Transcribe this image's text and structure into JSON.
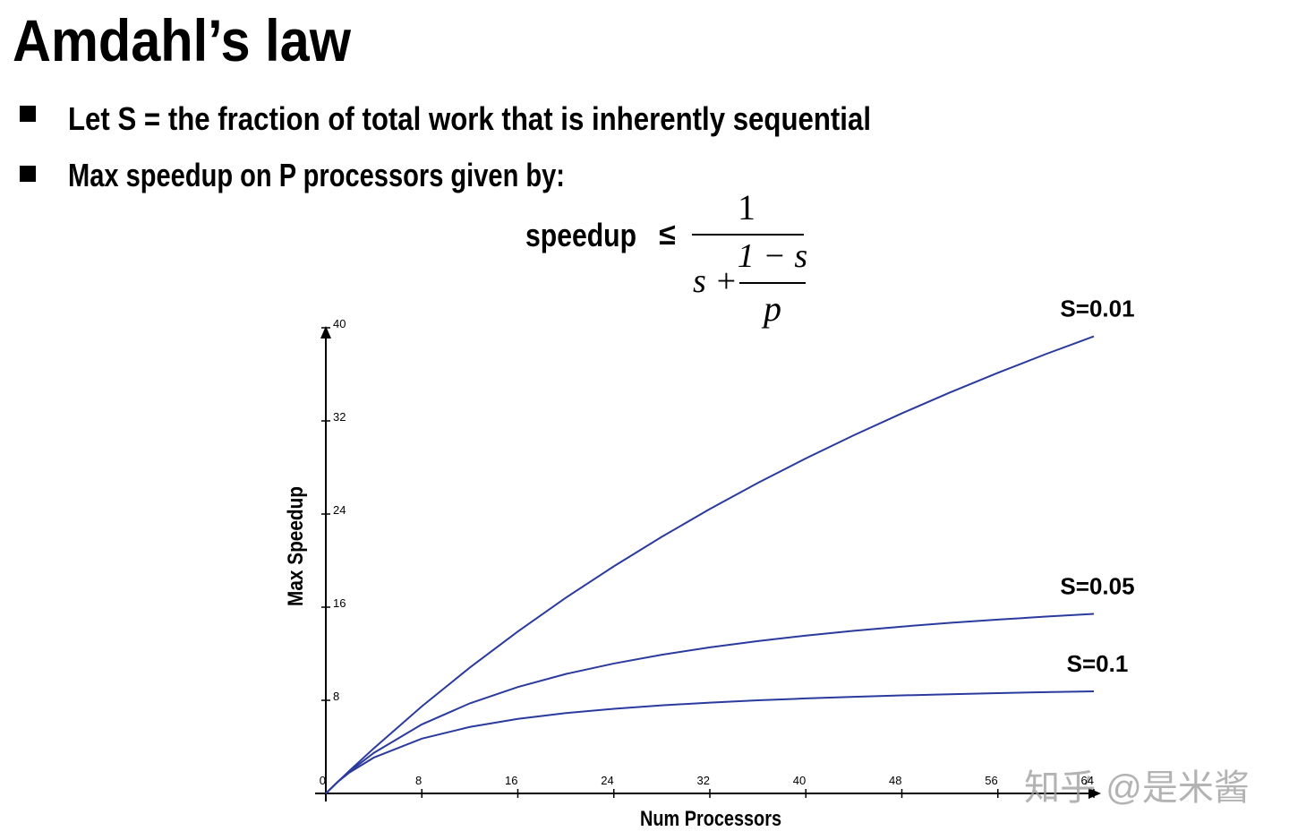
{
  "slide": {
    "title": "Amdahl’s law",
    "bullets": [
      "Let S = the fraction of total work that is inherently sequential",
      "Max speedup on P processors given by:"
    ],
    "formula": {
      "lhs": "speedup",
      "relation": "≤",
      "numerator": "1",
      "inner_numerator": "1 − s",
      "s_plus": "s +",
      "inner_denominator": "p"
    },
    "watermark": "知乎 @是米酱"
  },
  "chart_data": {
    "type": "line",
    "x_label": "Num Processors",
    "y_label": "Max Speedup",
    "x": [
      0,
      1,
      2,
      4,
      8,
      12,
      16,
      20,
      24,
      28,
      32,
      36,
      40,
      44,
      48,
      52,
      56,
      60,
      64
    ],
    "series": [
      {
        "name": "S=0.01",
        "color": "#2b3a9e",
        "values": [
          0,
          1,
          1.98,
          3.88,
          7.48,
          10.81,
          13.91,
          16.81,
          19.51,
          22.05,
          24.43,
          26.67,
          28.78,
          30.77,
          32.65,
          34.44,
          36.13,
          37.74,
          39.26
        ]
      },
      {
        "name": "S=0.05",
        "color": "#2b3a9e",
        "values": [
          0,
          1,
          1.9,
          3.48,
          5.93,
          7.74,
          9.14,
          10.26,
          11.16,
          11.91,
          12.55,
          13.09,
          13.56,
          13.97,
          14.33,
          14.65,
          14.93,
          15.19,
          15.42
        ]
      },
      {
        "name": "S=0.1",
        "color": "#2b3a9e",
        "values": [
          0,
          1,
          1.82,
          3.08,
          4.71,
          5.71,
          6.4,
          6.9,
          7.27,
          7.57,
          7.8,
          8,
          8.16,
          8.3,
          8.42,
          8.52,
          8.62,
          8.7,
          8.77
        ]
      }
    ],
    "xlim": [
      0,
      64
    ],
    "ylim": [
      0,
      40
    ],
    "xticks": [
      0,
      8,
      16,
      24,
      32,
      40,
      48,
      56,
      64
    ],
    "yticks": [
      0,
      8,
      16,
      24,
      32,
      40
    ],
    "grid": false
  }
}
